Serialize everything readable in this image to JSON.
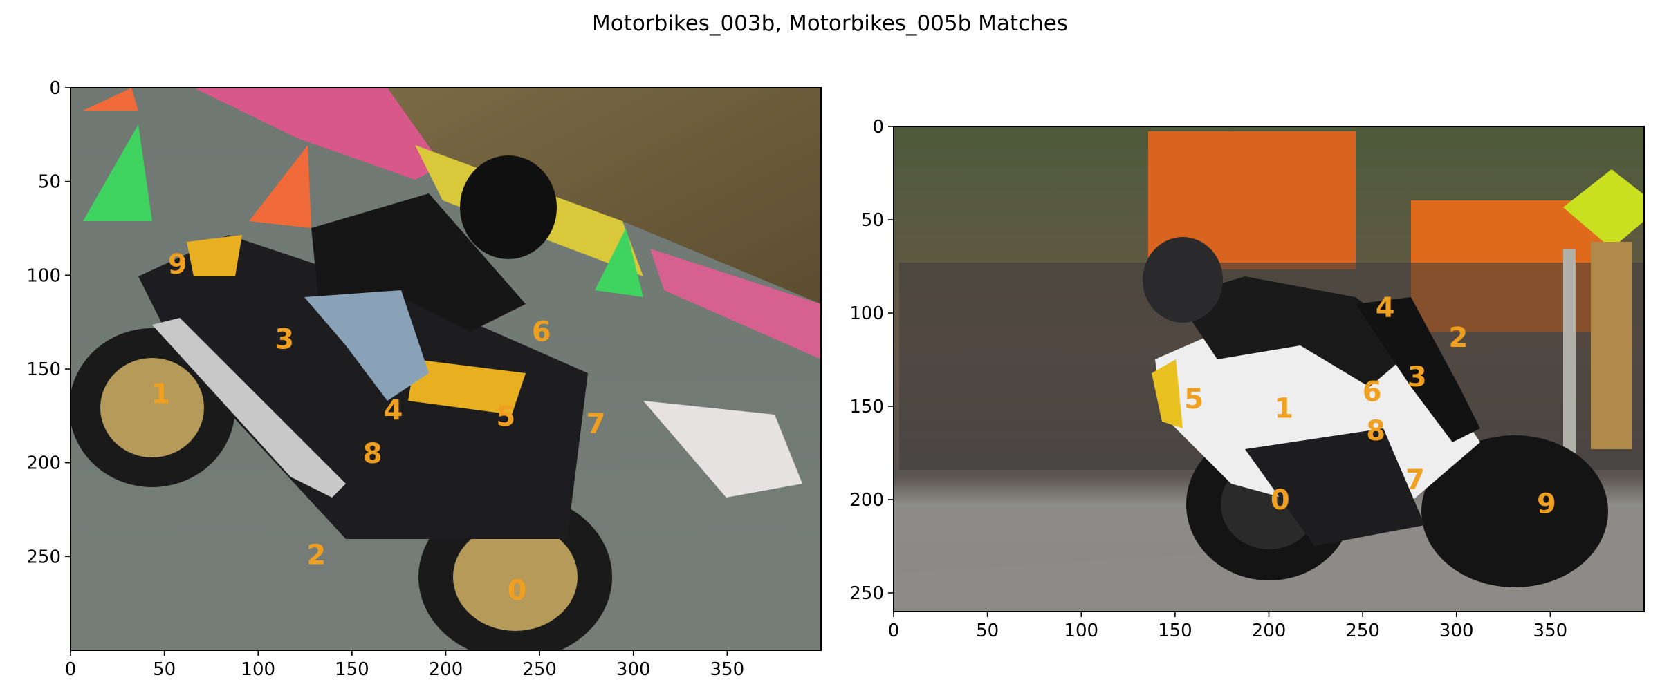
{
  "figure": {
    "title": "Motorbikes_003b, Motorbikes_005b Matches"
  },
  "colors": {
    "keypoint_label": "#f0a020",
    "axes_frame": "#000000"
  },
  "chart_data": [
    {
      "type": "scatter",
      "subplot": "left",
      "image": "photo of rider on yellow/black motorcycle leaning into a turn on a track with cones",
      "xlim": [
        0,
        400
      ],
      "ylim": [
        300,
        0
      ],
      "x_ticks": [
        0,
        50,
        100,
        150,
        200,
        250,
        300,
        350
      ],
      "y_ticks": [
        0,
        50,
        100,
        150,
        200,
        250
      ],
      "points": [
        {
          "label": "0",
          "x": 238,
          "y": 268
        },
        {
          "label": "1",
          "x": 48,
          "y": 163
        },
        {
          "label": "2",
          "x": 131,
          "y": 249
        },
        {
          "label": "3",
          "x": 114,
          "y": 134
        },
        {
          "label": "4",
          "x": 172,
          "y": 172
        },
        {
          "label": "5",
          "x": 232,
          "y": 175
        },
        {
          "label": "6",
          "x": 251,
          "y": 130
        },
        {
          "label": "7",
          "x": 280,
          "y": 179
        },
        {
          "label": "8",
          "x": 161,
          "y": 195
        },
        {
          "label": "9",
          "x": 57,
          "y": 94
        }
      ]
    },
    {
      "type": "scatter",
      "subplot": "right",
      "image": "photo of rider on white/black Suzuki sport motorcycle leaning into a turn with spectators behind",
      "xlim": [
        0,
        400
      ],
      "ylim": [
        260,
        0
      ],
      "x_ticks": [
        0,
        50,
        100,
        150,
        200,
        250,
        300,
        350
      ],
      "y_ticks": [
        0,
        50,
        100,
        150,
        200,
        250
      ],
      "points": [
        {
          "label": "0",
          "x": 206,
          "y": 200
        },
        {
          "label": "1",
          "x": 208,
          "y": 151
        },
        {
          "label": "2",
          "x": 301,
          "y": 113
        },
        {
          "label": "3",
          "x": 279,
          "y": 134
        },
        {
          "label": "4",
          "x": 262,
          "y": 97
        },
        {
          "label": "5",
          "x": 160,
          "y": 146
        },
        {
          "label": "6",
          "x": 255,
          "y": 142
        },
        {
          "label": "7",
          "x": 278,
          "y": 189
        },
        {
          "label": "8",
          "x": 257,
          "y": 163
        },
        {
          "label": "9",
          "x": 348,
          "y": 202
        }
      ]
    }
  ]
}
